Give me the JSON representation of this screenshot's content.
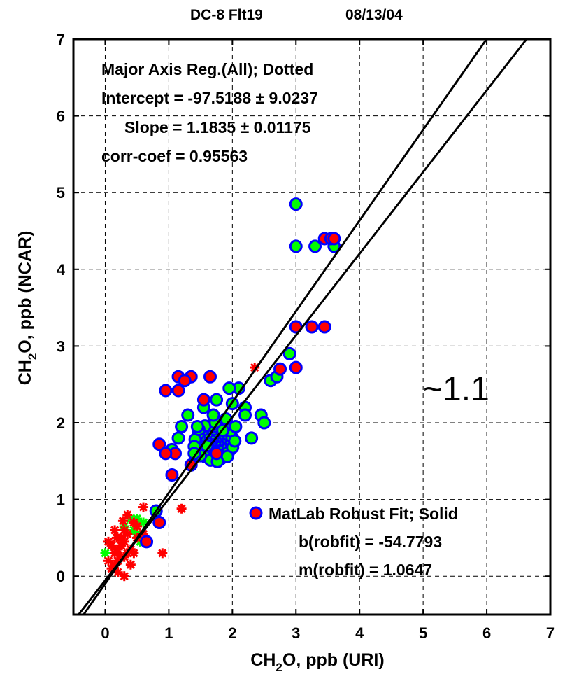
{
  "chart_data": {
    "type": "scatter",
    "title_left": "DC-8 Flt19",
    "title_right": "08/13/04",
    "xlabel_pre": "CH",
    "xlabel_sub": "2",
    "xlabel_post": "O, ppb (URI)",
    "ylabel_pre": "CH",
    "ylabel_sub": "2",
    "ylabel_post": "O, ppb (NCAR)",
    "xlim": [
      -0.5,
      7
    ],
    "ylim": [
      -0.5,
      7
    ],
    "x_ticks": [
      "0",
      "1",
      "2",
      "3",
      "4",
      "5",
      "6",
      "7"
    ],
    "y_ticks": [
      "0",
      "1",
      "2",
      "3",
      "4",
      "5",
      "6",
      "7"
    ],
    "grid": true,
    "annotations": {
      "reg_title": "Major Axis Reg.(All); Dotted",
      "intercept": "Intercept = -97.5188 ± 9.0237",
      "slope": "Slope = 1.1835 ± 0.01175",
      "corr": "corr-coef = 0.95563",
      "ratio": "~1.1",
      "legend": "MatLab Robust Fit; Solid",
      "b_robfit": "b(robfit) = -54.7793",
      "m_robfit": "m(robfit) = 1.0647"
    },
    "lines": [
      {
        "slope": 1.1835,
        "intercept": -0.0975
      },
      {
        "slope": 1.0647,
        "intercept": -0.0548
      }
    ],
    "colors": {
      "circle_edge": "#0000ff",
      "fill_green": "#00ff00",
      "fill_red": "#ff0000",
      "star": "#ff0000",
      "star_green": "#00ff00"
    },
    "circles_green": [
      [
        3.0,
        4.85
      ],
      [
        3.0,
        4.3
      ],
      [
        3.3,
        4.3
      ],
      [
        3.6,
        4.3
      ],
      [
        2.9,
        2.9
      ],
      [
        2.1,
        2.45
      ],
      [
        1.95,
        2.45
      ],
      [
        2.2,
        2.2
      ],
      [
        1.7,
        2.1
      ],
      [
        1.2,
        1.95
      ],
      [
        1.3,
        2.1
      ],
      [
        1.55,
        2.2
      ],
      [
        1.75,
        2.3
      ],
      [
        2.0,
        2.25
      ],
      [
        2.45,
        2.1
      ],
      [
        2.5,
        2.0
      ],
      [
        2.3,
        1.8
      ],
      [
        2.6,
        2.55
      ],
      [
        2.7,
        2.6
      ],
      [
        1.15,
        1.8
      ],
      [
        1.05,
        1.65
      ],
      [
        1.4,
        1.6
      ],
      [
        1.6,
        1.7
      ],
      [
        1.85,
        1.9
      ],
      [
        2.05,
        1.95
      ],
      [
        1.45,
        1.95
      ],
      [
        1.9,
        2.05
      ],
      [
        2.2,
        2.1
      ],
      [
        0.8,
        0.85
      ]
    ],
    "circles_red": [
      [
        3.45,
        4.4
      ],
      [
        3.55,
        4.4
      ],
      [
        3.6,
        4.4
      ],
      [
        3.0,
        3.25
      ],
      [
        3.25,
        3.25
      ],
      [
        3.45,
        3.25
      ],
      [
        3.0,
        2.72
      ],
      [
        0.95,
        2.42
      ],
      [
        1.15,
        2.42
      ],
      [
        1.15,
        2.6
      ],
      [
        1.35,
        2.6
      ],
      [
        1.65,
        2.6
      ],
      [
        1.55,
        2.3
      ],
      [
        0.85,
        1.72
      ],
      [
        1.1,
        1.6
      ],
      [
        0.95,
        1.6
      ],
      [
        1.05,
        1.32
      ],
      [
        1.35,
        1.45
      ],
      [
        0.85,
        0.7
      ],
      [
        0.65,
        0.45
      ],
      [
        2.75,
        2.7
      ],
      [
        1.75,
        1.6
      ],
      [
        1.25,
        2.55
      ]
    ],
    "stars_red": [
      [
        2.35,
        2.72
      ],
      [
        1.2,
        0.88
      ],
      [
        0.9,
        0.3
      ],
      [
        0.6,
        0.9
      ],
      [
        0.05,
        0.45
      ],
      [
        0.45,
        0.7
      ],
      [
        0.3,
        0.6
      ],
      [
        0.35,
        0.55
      ],
      [
        0.25,
        0.4
      ],
      [
        0.15,
        0.3
      ],
      [
        0.2,
        0.2
      ],
      [
        0.1,
        0.1
      ],
      [
        0.3,
        0.25
      ],
      [
        0.4,
        0.35
      ],
      [
        0.5,
        0.5
      ],
      [
        0.2,
        0.05
      ],
      [
        0.3,
        0.0
      ],
      [
        0.25,
        0.5
      ],
      [
        0.4,
        0.15
      ],
      [
        0.15,
        0.6
      ],
      [
        0.35,
        0.8
      ],
      [
        0.1,
        0.4
      ],
      [
        0.45,
        0.3
      ],
      [
        0.05,
        0.2
      ],
      [
        0.2,
        0.35
      ],
      [
        0.3,
        0.45
      ],
      [
        0.5,
        0.65
      ],
      [
        0.6,
        0.55
      ],
      [
        0.15,
        0.15
      ],
      [
        0.25,
        0.25
      ],
      [
        0.35,
        0.3
      ],
      [
        0.28,
        0.72
      ],
      [
        0.18,
        0.5
      ]
    ],
    "stars_green": [
      [
        0.4,
        0.75
      ],
      [
        0.5,
        0.75
      ],
      [
        0.6,
        0.7
      ],
      [
        0.45,
        0.6
      ],
      [
        0.3,
        0.65
      ],
      [
        0.0,
        0.3
      ],
      [
        0.5,
        0.55
      ],
      [
        0.55,
        0.45
      ]
    ]
  }
}
